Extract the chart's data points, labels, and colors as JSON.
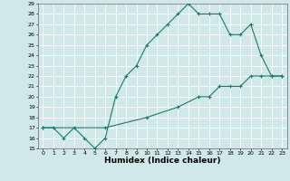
{
  "title": "",
  "xlabel": "Humidex (Indice chaleur)",
  "ylabel": "",
  "bg_color": "#d0e8e8",
  "grid_color": "#ffffff",
  "line_color": "#1a7a6e",
  "line1_x": [
    0,
    1,
    2,
    3,
    4,
    5,
    6,
    7,
    8,
    9,
    10,
    11,
    12,
    13,
    14,
    15,
    16,
    17,
    18,
    19,
    20,
    21,
    22,
    23
  ],
  "line1_y": [
    17,
    17,
    16,
    17,
    16,
    15,
    16,
    20,
    22,
    23,
    25,
    26,
    27,
    28,
    29,
    28,
    28,
    28,
    26,
    26,
    27,
    24,
    22,
    22
  ],
  "line2_x": [
    0,
    6,
    10,
    13,
    15,
    16,
    17,
    18,
    19,
    20,
    21,
    22,
    23
  ],
  "line2_y": [
    17,
    17,
    18,
    19,
    20,
    20,
    21,
    21,
    21,
    22,
    22,
    22,
    22
  ],
  "xlim": [
    -0.5,
    23.5
  ],
  "ylim": [
    15,
    29
  ],
  "xticks": [
    0,
    1,
    2,
    3,
    4,
    5,
    6,
    7,
    8,
    9,
    10,
    11,
    12,
    13,
    14,
    15,
    16,
    17,
    18,
    19,
    20,
    21,
    22,
    23
  ],
  "yticks": [
    15,
    16,
    17,
    18,
    19,
    20,
    21,
    22,
    23,
    24,
    25,
    26,
    27,
    28,
    29
  ],
  "tick_fontsize": 4.5,
  "xlabel_fontsize": 6.5,
  "marker": "+",
  "markersize": 3,
  "linewidth": 0.8
}
